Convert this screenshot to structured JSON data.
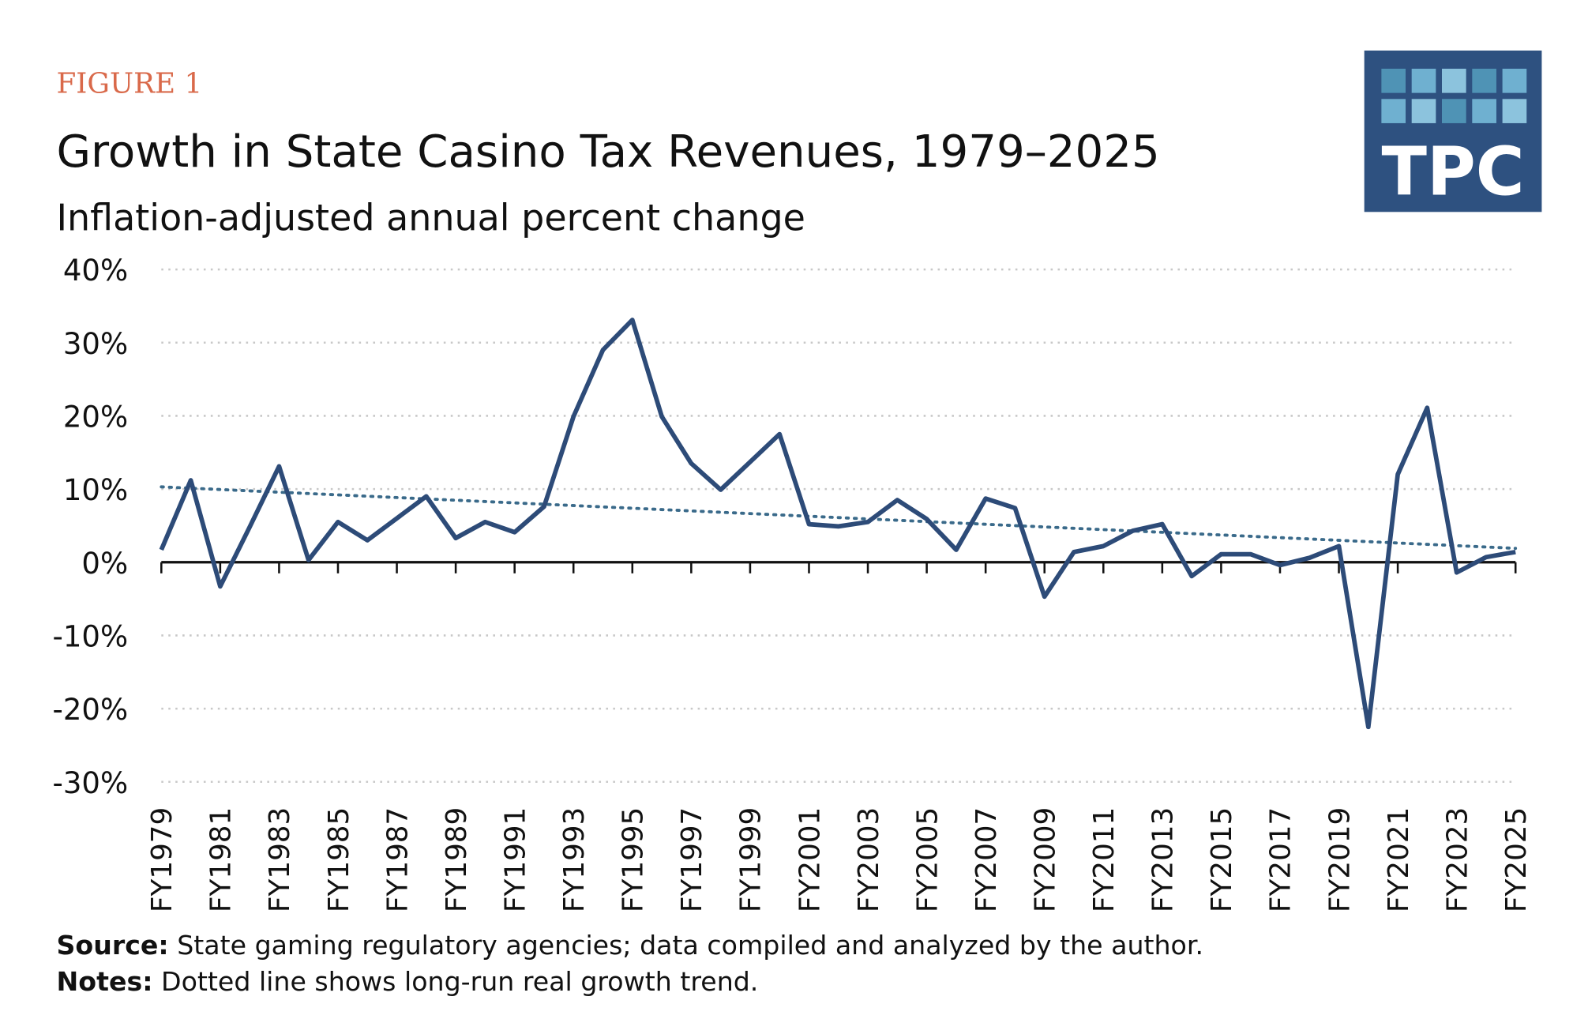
{
  "figure_label": "FIGURE 1",
  "logo": "TPC",
  "source_label": "Source:",
  "source": "State gaming regulatory agencies; data compiled and analyzed by the author.",
  "notes_label": "Notes:",
  "notes": "Dotted line shows long-run real growth trend.",
  "chart_data": {
    "type": "line",
    "title": "Growth in State Casino Tax Revenues, 1979–2025",
    "subtitle": "Inflation-adjusted annual percent change",
    "categories": [
      "FY1979",
      null,
      "FY1981",
      null,
      "FY1983",
      null,
      "FY1985",
      null,
      "FY1987",
      null,
      "FY1989",
      null,
      "FY1991",
      null,
      "FY1993",
      null,
      "FY1995",
      null,
      "FY1997",
      null,
      "FY1999",
      null,
      "FY2001",
      null,
      "FY2003",
      null,
      "FY2005",
      null,
      "FY2007",
      null,
      "FY2009",
      null,
      "FY2011",
      null,
      "FY2013",
      null,
      "FY2015",
      null,
      "FY2017",
      null,
      "FY2019",
      null,
      "FY2021",
      null,
      "FY2023",
      null,
      "FY2025"
    ],
    "series": [
      {
        "color": "#2d4b78",
        "values": [
          1.7,
          11.2,
          -3.3,
          4.8,
          13.1,
          0.3,
          5.5,
          3.0,
          6.0,
          9.0,
          3.3,
          5.5,
          4.1,
          7.6,
          19.9,
          29.0,
          33.1,
          19.9,
          13.5,
          9.9,
          13.7,
          17.5,
          5.2,
          4.9,
          5.5,
          8.5,
          5.9,
          1.7,
          8.7,
          7.4,
          -4.7,
          1.4,
          2.2,
          4.3,
          5.2,
          -1.9,
          1.1,
          1.1,
          -0.4,
          0.6,
          2.2,
          -22.5,
          12.0,
          21.1,
          -1.4,
          0.7,
          1.4
        ]
      }
    ],
    "trend": {
      "color": "#3a6a8a",
      "style": "dotted",
      "values": [
        10.3,
        1.9
      ]
    },
    "ylim": [
      -30,
      40
    ],
    "yticks": [
      {
        "value": -30,
        "label": "-30%"
      },
      {
        "value": -20,
        "label": "-20%"
      },
      {
        "value": -10,
        "label": "-10%"
      },
      {
        "value": 0,
        "label": "0%"
      },
      {
        "value": 10,
        "label": "10%"
      },
      {
        "value": 20,
        "label": "20%"
      },
      {
        "value": 30,
        "label": "30%"
      },
      {
        "value": 40,
        "label": "40%"
      }
    ],
    "grid": true
  }
}
